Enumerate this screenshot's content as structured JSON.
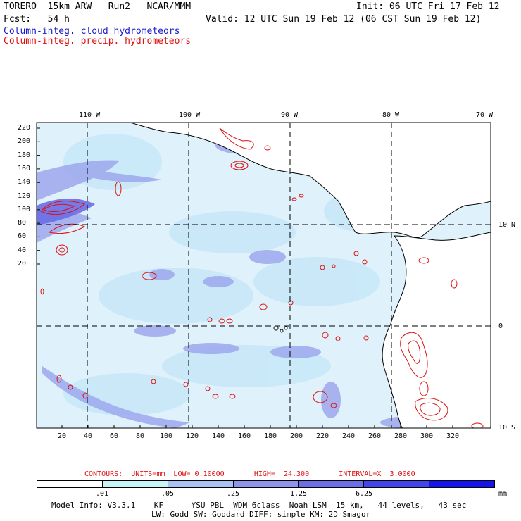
{
  "header": {
    "model": "TORERO  15km ARW   Run2   NCAR/MMM",
    "init": "Init: 06 UTC Fri 17 Feb 12",
    "fcst": "Fcst:   54 h",
    "valid": "Valid: 12 UTC Sun 19 Feb 12 (06 CST Sun 19 Feb 12)",
    "field_cloud": "Column-integ. cloud hydrometeors",
    "field_precip": "Column-integ. precip. hydrometeors"
  },
  "map": {
    "lon_labels": [
      "110 W",
      "100 W",
      "90 W",
      "80 W",
      "70 W"
    ],
    "lat_labels": [
      "10 N",
      "0",
      "10 S"
    ],
    "y_ticks": [
      "220",
      "200",
      "180",
      "160",
      "140",
      "120",
      "100",
      "80",
      "60",
      "40",
      "20"
    ],
    "x_ticks": [
      "20",
      "40",
      "60",
      "80",
      "100",
      "120",
      "140",
      "160",
      "180",
      "200",
      "220",
      "240",
      "260",
      "280",
      "300",
      "320"
    ],
    "colors": {
      "ocean_light": "#dff2fb",
      "cloud_shade_1": "#c8e8f8",
      "cloud_shade_2": "#9ea8ee",
      "cloud_shade_3": "#6a6ee6",
      "precip_contour": "#e01010",
      "coastline": "#000000"
    }
  },
  "contours": {
    "label": "CONTOURS:  UNITS=mm  LOW= 0.10000       HIGH=  24.300       INTERVAL=X  3.0000"
  },
  "colorbar": {
    "colors": [
      "#ffffff",
      "#c8f4f8",
      "#a8c4f4",
      "#8e96ec",
      "#6c6ee6",
      "#4046ec",
      "#1414ee"
    ],
    "labels": [
      ".01",
      ".05",
      ".25",
      "1.25",
      "6.25"
    ],
    "unit": "mm"
  },
  "footer": {
    "line1": "Model Info: V3.3.1    KF      YSU PBL  WDM 6class  Noah LSM  15 km,   44 levels,   43 sec",
    "line2": "LW: Godd SW: Goddard DIFF: simple KM: 2D Smagor"
  }
}
